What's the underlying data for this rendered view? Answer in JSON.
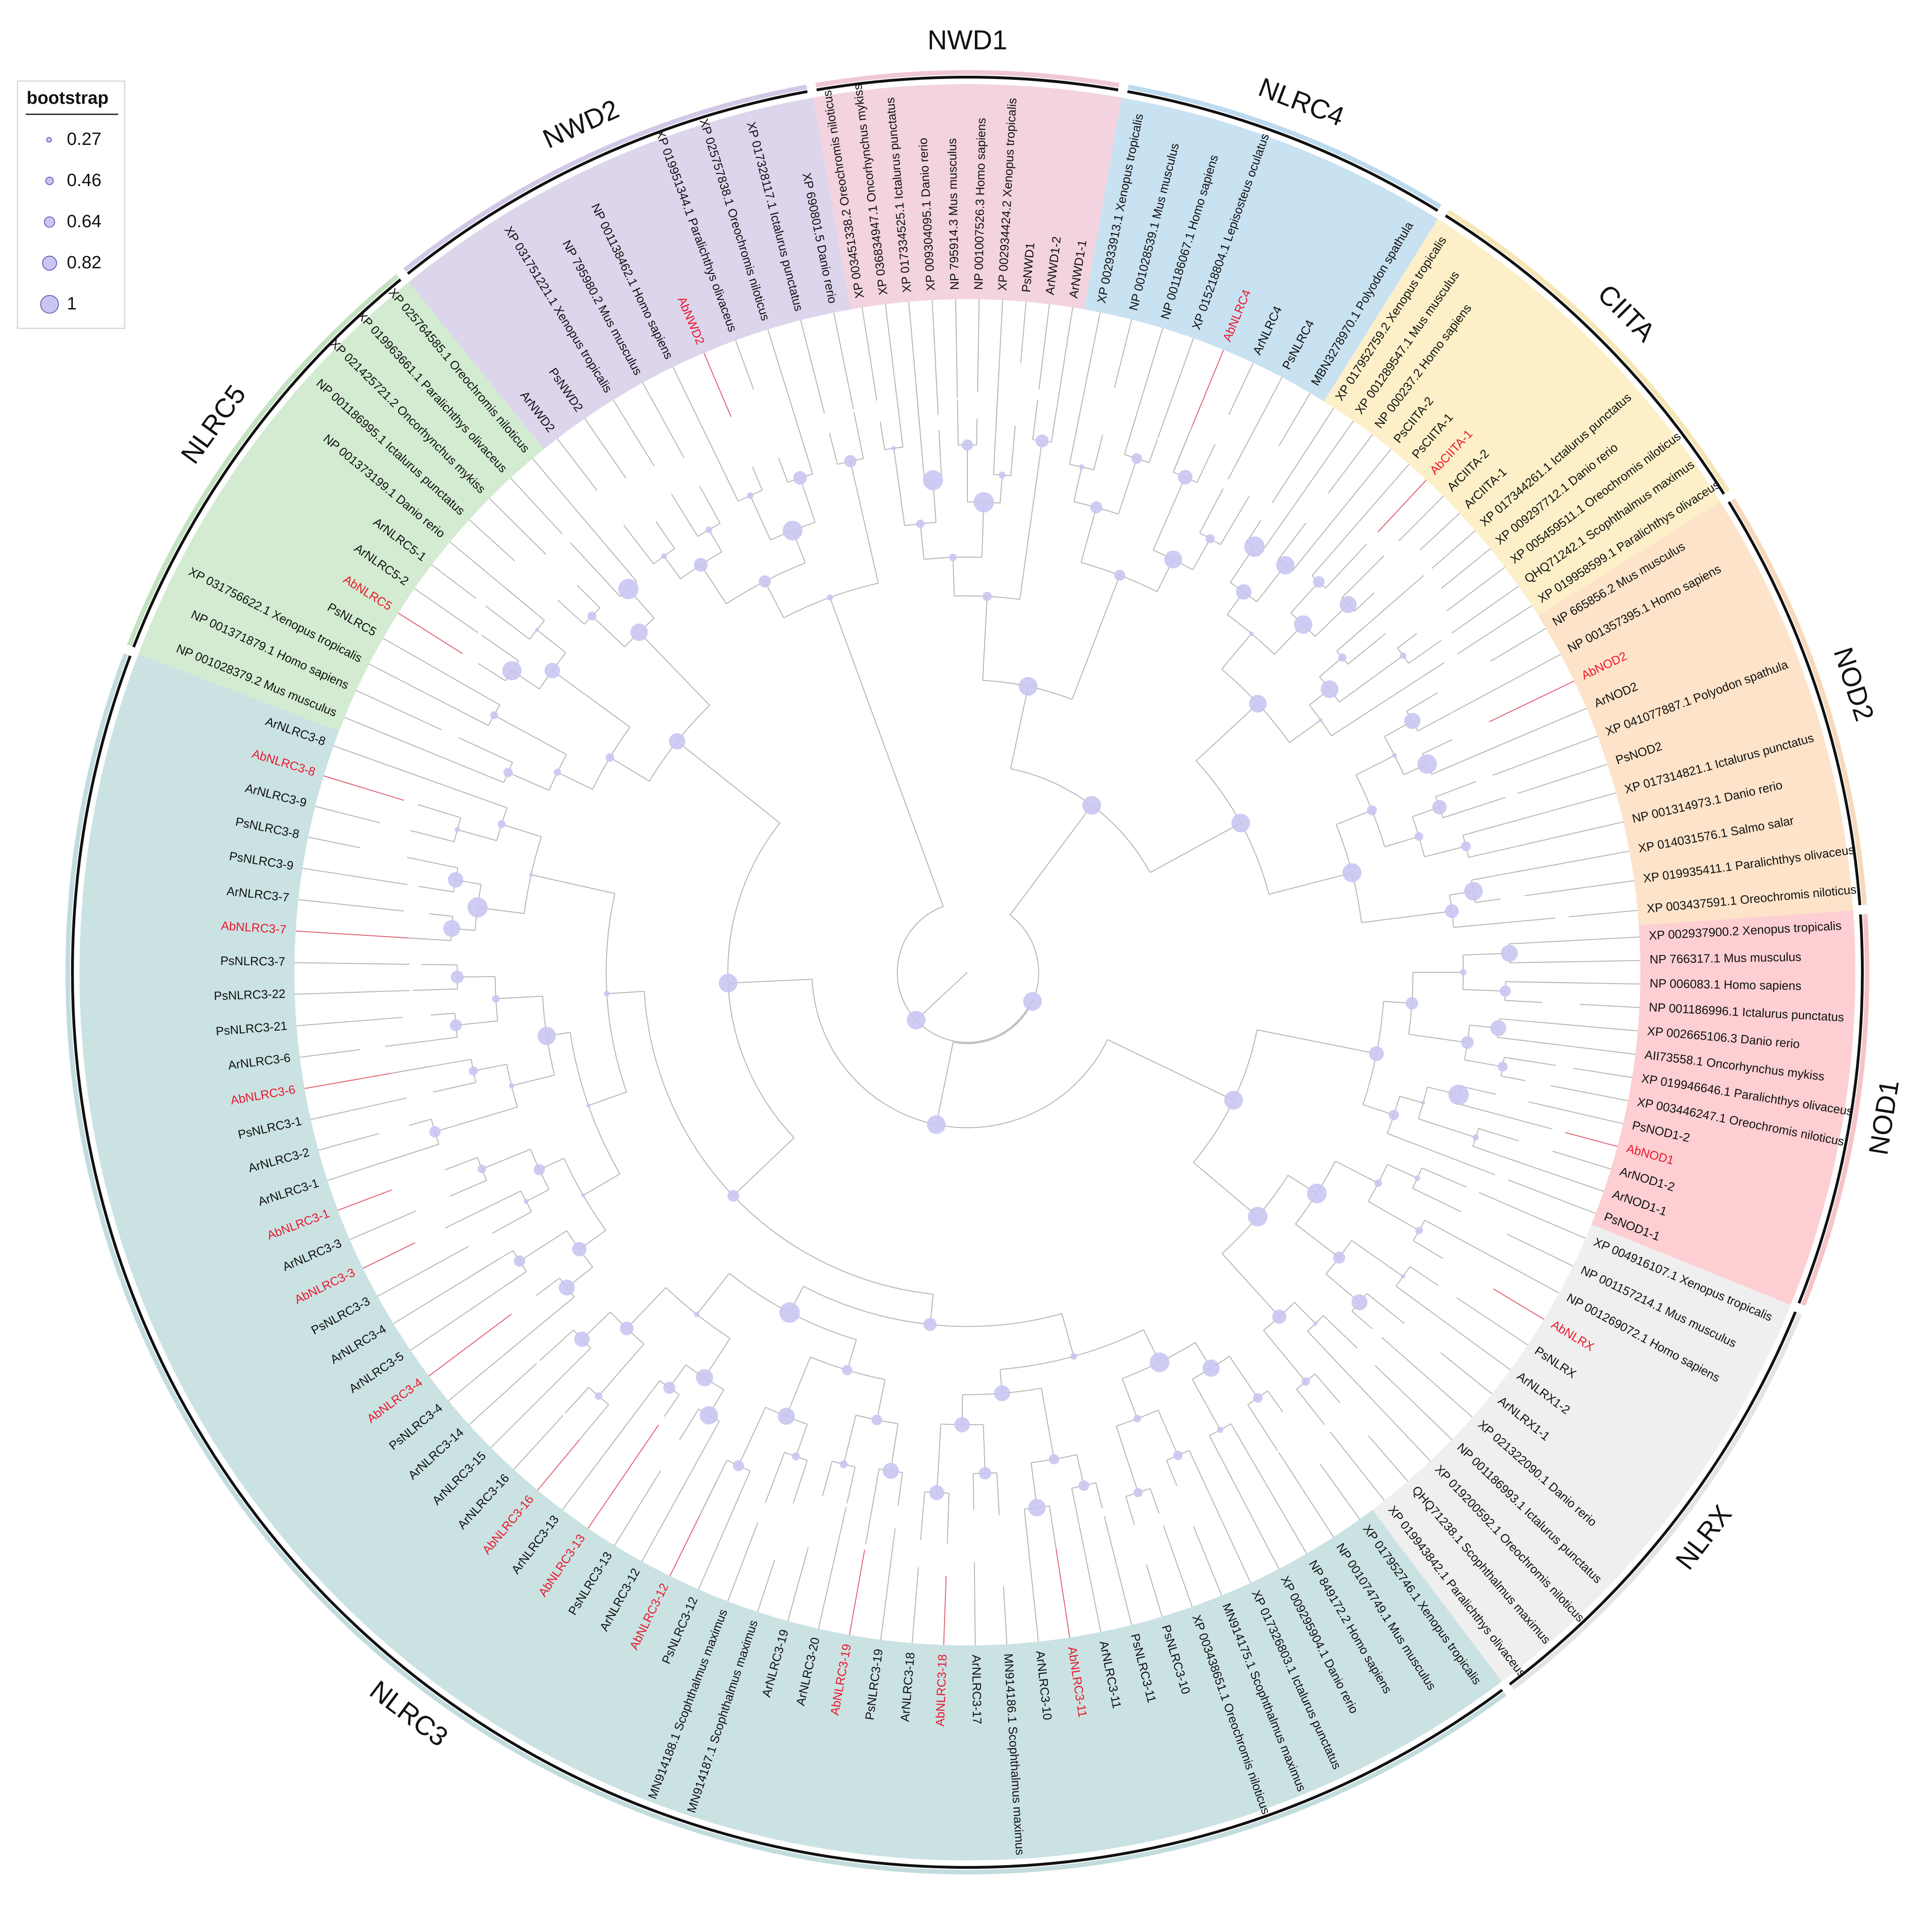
{
  "legend": {
    "title": "bootstrap",
    "items": [
      {
        "label": "0.27",
        "value": 0.27
      },
      {
        "label": "0.46",
        "value": 0.46
      },
      {
        "label": "0.64",
        "value": 0.64
      },
      {
        "label": "0.82",
        "value": 0.82
      },
      {
        "label": "1",
        "value": 1
      }
    ]
  },
  "colors": {
    "node_fill": "#c9c6f2",
    "node_stroke": "#9f9bdc",
    "branch": "#b5b5b5",
    "highlight_text": "#e8192c",
    "normal_text": "#111111"
  },
  "clades": [
    {
      "name": "NWD1",
      "color": "#f2d3df",
      "ring": "#f0c7d6",
      "taxa": [
        "XP 003451338.2 Oreochromis niloticus",
        "XP 036834947.1 Oncorhynchus mykiss",
        "XP 017334525.1 Ictalurus punctatus",
        "XP 009304095.1 Danio rerio",
        "NP 795914.3 Mus musculus",
        "NP 001007526.3 Homo sapiens",
        "XP 002934424.2 Xenopus tropicalis",
        "PsNWD1",
        "ArNWD1-2",
        "ArNWD1-1"
      ],
      "highlight": []
    },
    {
      "name": "NLRC4",
      "color": "#c8e2f2",
      "ring": "#bcdaee",
      "taxa": [
        "XP 002933913.1 Xenopus tropicalis",
        "NP 001028539.1 Mus musculus",
        "NP 001186067.1 Homo sapiens",
        "XP 015218804.1 Lepisosteus oculatus",
        "AbNLRC4",
        "ArNLRC4",
        "PsNLRC4",
        "MBN3278970.1 Polyodon spathula"
      ],
      "highlight": [
        "AbNLRC4"
      ]
    },
    {
      "name": "CIITA",
      "color": "#fdf0c8",
      "ring": "#f6e6b4",
      "taxa": [
        "XP 017952759.2 Xenopus tropicalis",
        "XP 001289547.1 Mus musculus",
        "NP 000237.2 Homo sapiens",
        "PsCIITA-2",
        "PsCIITA-1",
        "AbCIITA-1",
        "ArCIITA-2",
        "ArCIITA-1",
        "XP 017344261.1 Ictalurus punctatus",
        "XP 009297712.1 Danio rerio",
        "XP 005459511.1 Oreochromis niloticus",
        "QHQ71242.1 Scophthalmus maximus",
        "XP 019958599.1 Paralichthys olivaceus"
      ],
      "highlight": [
        "AbCIITA-1"
      ]
    },
    {
      "name": "NOD2",
      "color": "#fde3c9",
      "ring": "#f8d8ba",
      "taxa": [
        "NP 665856.2 Mus musculus",
        "NP 001357395.1 Homo sapiens",
        "AbNOD2",
        "ArNOD2",
        "XP 041077887.1 Polyodon spathula",
        "PsNOD2",
        "XP 017314821.1 Ictalurus punctatus",
        "NP 001314973.1 Danio rerio",
        "XP 014031576.1 Salmo salar",
        "XP 019935411.1 Paralichthys olivaceus",
        "XP 003437591.1 Oreochromis niloticus"
      ],
      "highlight": [
        "AbNOD2"
      ]
    },
    {
      "name": "NOD1",
      "color": "#fdcfd2",
      "ring": "#f6c3c8",
      "taxa": [
        "XP 002937900.2 Xenopus tropicalis",
        "NP 766317.1 Mus musculus",
        "NP 006083.1 Homo sapiens",
        "NP 001186996.1 Ictalurus punctatus",
        "XP 002665106.3 Danio rerio",
        "AII73558.1 Oncorhynchus mykiss",
        "XP 019946646.1 Paralichthys olivaceus",
        "XP 003446247.1 Oreochromis niloticus",
        "PsNOD1-2",
        "AbNOD1",
        "ArNOD1-2",
        "ArNOD1-1",
        "PsNOD1-1"
      ],
      "highlight": [
        "AbNOD1"
      ]
    },
    {
      "name": "NLRX",
      "color": "#efefef",
      "ring": "#e4e4e4",
      "taxa": [
        "XP 004916107.1 Xenopus tropicalis",
        "NP 001157214.1 Mus musculus",
        "NP 001269072.1 Homo sapiens",
        "AbNLRX",
        "PsNLRX",
        "ArNLRX1-2",
        "ArNLRX1-1",
        "XP 021322090.1 Danio rerio",
        "NP 001186993.1 Ictalurus punctatus",
        "XP 019200592.1 Oreochromis niloticus",
        "QHQ71238.1 Scophthalmus maximus",
        "XP 019943842.1 Paralichthys olivaceus"
      ],
      "highlight": [
        "AbNLRX"
      ]
    },
    {
      "name": "NLRC3",
      "color": "#cbe2e3",
      "ring": "#c2dcdd",
      "taxa": [
        "XP 017952746.1 Xenopus tropicalis",
        "NP 001074749.1 Mus musculus",
        "NP 849172.2 Homo sapiens",
        "XP 009295904.1 Danio rerio",
        "XP 017326803.1 Ictalurus punctatus",
        "MN914175.1 Scophthalmus maximus",
        "XP 003438651.1 Oreochromis niloticus",
        "PsNLRC3-10",
        "PsNLRC3-11",
        "ArNLRC3-11",
        "AbNLRC3-11",
        "ArNLRC3-10",
        "MN914186.1 Scophthalmus maximus",
        "ArNLRC3-17",
        "AbNLRC3-18",
        "ArNLRC3-18",
        "PsNLRC3-19",
        "AbNLRC3-19",
        "ArNLRC3-20",
        "ArNLRC3-19",
        "MN914187.1 Scophthalmus maximus",
        "MN914188.1 Scophthalmus maximus",
        "PsNLRC3-12",
        "AbNLRC3-12",
        "ArNLRC3-12",
        "PsNLRC3-13",
        "AbNLRC3-13",
        "ArNLRC3-13",
        "AbNLRC3-16",
        "ArNLRC3-16",
        "ArNLRC3-15",
        "ArNLRC3-14",
        "PsNLRC3-4",
        "AbNLRC3-4",
        "ArNLRC3-5",
        "ArNLRC3-4",
        "PsNLRC3-3",
        "AbNLRC3-3",
        "ArNLRC3-3",
        "AbNLRC3-1",
        "ArNLRC3-1",
        "ArNLRC3-2",
        "PsNLRC3-1",
        "AbNLRC3-6",
        "ArNLRC3-6",
        "PsNLRC3-21",
        "PsNLRC3-22",
        "PsNLRC3-7",
        "AbNLRC3-7",
        "ArNLRC3-7",
        "PsNLRC3-9",
        "PsNLRC3-8",
        "ArNLRC3-9",
        "AbNLRC3-8",
        "ArNLRC3-8"
      ],
      "highlight": [
        "AbNLRC3-11",
        "AbNLRC3-18",
        "AbNLRC3-19",
        "AbNLRC3-12",
        "AbNLRC3-13",
        "AbNLRC3-16",
        "AbNLRC3-4",
        "AbNLRC3-3",
        "AbNLRC3-1",
        "AbNLRC3-6",
        "AbNLRC3-7",
        "AbNLRC3-8"
      ]
    },
    {
      "name": "NLRC5",
      "color": "#d3ebd1",
      "ring": "#c4e2c1",
      "taxa": [
        "NP 001028379.2 Mus musculus",
        "NP 001371879.1 Homo sapiens",
        "XP 031756622.1 Xenopus tropicalis",
        "PsNLRC5",
        "AbNLRC5",
        "ArNLRC5-2",
        "ArNLRC5-1",
        "NP 001373199.1 Danio rerio",
        "NP 001186995.1 Ictalurus punctatus",
        "XP 021425721.2 Oncorhynchus mykiss",
        "XP 019963661.1 Paralichthys olivaceus",
        "XP 025764585.1 Oreochromis niloticus"
      ],
      "highlight": [
        "AbNLRC5"
      ]
    },
    {
      "name": "NWD2",
      "color": "#ddd5ec",
      "ring": "#d2c8e6",
      "taxa": [
        "ArNWD2",
        "PsNWD2",
        "XP 031751221.1 Xenopus tropicalis",
        "NP 795980.2 Mus musculus",
        "NP 001138462.1 Homo sapiens",
        "AbNWD2",
        "XP 019951344.1 Paralichthys olivaceus",
        "XP 025757838.1 Oreochromis niloticus",
        "XP 017328117.1 Ictalurus punctatus",
        "XP 690801.5 Danio rerio"
      ],
      "highlight": [
        "AbNWD2"
      ]
    }
  ]
}
